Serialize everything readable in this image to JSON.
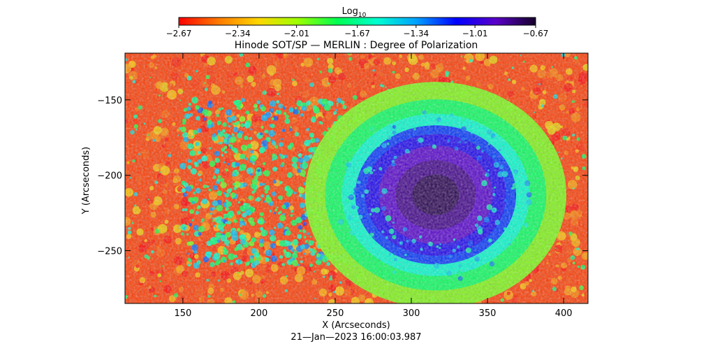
{
  "chart_data": {
    "type": "heatmap",
    "title": "Hinode SOT/SP — MERLIN : Degree of Polarization",
    "xlabel": "X (Arcseconds)",
    "ylabel": "Y (Arcseconds)",
    "date_label": "21—Jan—2023 16:00:03.987",
    "xlim": [
      112,
      416
    ],
    "ylim": [
      -285,
      -119
    ],
    "x_ticks": [
      150,
      200,
      250,
      300,
      350,
      400
    ],
    "y_ticks": [
      -150,
      -200,
      -250
    ],
    "x_tick_labels": [
      "150",
      "200",
      "250",
      "300",
      "350",
      "400"
    ],
    "y_tick_labels": [
      "−150",
      "−200",
      "−250"
    ],
    "colorbar": {
      "title_main": "Log",
      "title_sub": "10",
      "range": [
        -2.67,
        -0.67
      ],
      "ticks": [
        -2.67,
        -2.34,
        -2.01,
        -1.67,
        -1.34,
        -1.01,
        -0.67
      ],
      "tick_labels": [
        "−2.67",
        "−2.34",
        "−2.01",
        "−1.67",
        "−1.34",
        "−1.01",
        "−0.67"
      ],
      "colors": [
        "#ff0000",
        "#ff7a00",
        "#ffd600",
        "#9cff00",
        "#00ff50",
        "#00ffd0",
        "#00a0ff",
        "#0000ff",
        "#5a00c8",
        "#140028"
      ]
    },
    "features": {
      "sunspot_umbra": {
        "x": 316,
        "y": -213,
        "log_value": -0.72
      },
      "sunspot_penumbra_value": -1.05,
      "plage_region": {
        "x_range": [
          150,
          265
        ],
        "y_range": [
          -260,
          -150
        ],
        "log_value": -1.2
      },
      "quiet_sun_value": -2.55
    }
  }
}
